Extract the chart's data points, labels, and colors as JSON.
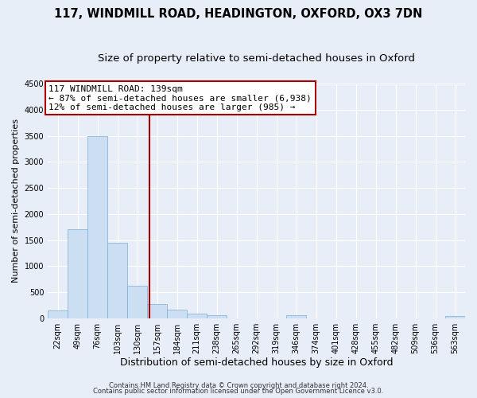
{
  "title": "117, WINDMILL ROAD, HEADINGTON, OXFORD, OX3 7DN",
  "subtitle": "Size of property relative to semi-detached houses in Oxford",
  "xlabel": "Distribution of semi-detached houses by size in Oxford",
  "ylabel": "Number of semi-detached properties",
  "bin_labels": [
    "22sqm",
    "49sqm",
    "76sqm",
    "103sqm",
    "130sqm",
    "157sqm",
    "184sqm",
    "211sqm",
    "238sqm",
    "265sqm",
    "292sqm",
    "319sqm",
    "346sqm",
    "374sqm",
    "401sqm",
    "428sqm",
    "455sqm",
    "482sqm",
    "509sqm",
    "536sqm",
    "563sqm"
  ],
  "bar_values": [
    150,
    1700,
    3500,
    1450,
    620,
    270,
    160,
    90,
    50,
    0,
    0,
    0,
    50,
    0,
    0,
    0,
    0,
    0,
    0,
    0,
    40
  ],
  "bar_color": "#ccdff2",
  "bar_edge_color": "#7aafd4",
  "vline_x": 4.63,
  "vline_color": "#aa0000",
  "annotation_title": "117 WINDMILL ROAD: 139sqm",
  "annotation_line1": "← 87% of semi-detached houses are smaller (6,938)",
  "annotation_line2": "12% of semi-detached houses are larger (985) →",
  "annotation_box_facecolor": "#ffffff",
  "annotation_box_edgecolor": "#aa0000",
  "ylim": [
    0,
    4500
  ],
  "yticks": [
    0,
    500,
    1000,
    1500,
    2000,
    2500,
    3000,
    3500,
    4000,
    4500
  ],
  "footer_line1": "Contains HM Land Registry data © Crown copyright and database right 2024.",
  "footer_line2": "Contains public sector information licensed under the Open Government Licence v3.0.",
  "background_color": "#e8eef7",
  "grid_color": "#ffffff",
  "title_fontsize": 10.5,
  "subtitle_fontsize": 9.5,
  "ylabel_fontsize": 8,
  "xlabel_fontsize": 9,
  "tick_fontsize": 7,
  "annotation_fontsize": 8,
  "footer_fontsize": 6
}
